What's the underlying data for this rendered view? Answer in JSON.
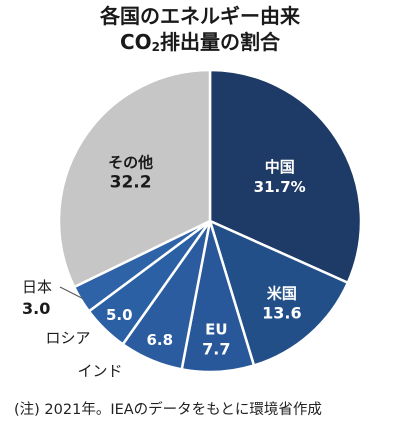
{
  "title_line1": "各国のエネルギー由来",
  "title_line2_pre": "CO",
  "title_line2_sub": "2",
  "title_line2_post": "排出量の割合",
  "note": "(注) 2021年。IEAのデータをもとに環境省作成",
  "chart_data": {
    "type": "pie",
    "start": "12 o'clock",
    "direction": "clockwise",
    "unit": "%",
    "slices": [
      {
        "name": "中国",
        "value": 31.7,
        "label": "31.7%",
        "color": "#1e3a66"
      },
      {
        "name": "米国",
        "value": 13.6,
        "label": "13.6",
        "color": "#234f88"
      },
      {
        "name": "EU",
        "value": 7.7,
        "label": "7.7",
        "color": "#28589a"
      },
      {
        "name": "インド",
        "value": 6.8,
        "label": "6.8",
        "color": "#2a5c9f"
      },
      {
        "name": "ロシア",
        "value": 5.0,
        "label": "5.0",
        "color": "#2c60a4"
      },
      {
        "name": "日本",
        "value": 3.0,
        "label": "3.0",
        "color": "#2e63a8"
      },
      {
        "name": "その他",
        "value": 32.2,
        "label": "32.2",
        "color": "#c6c6c6"
      }
    ]
  }
}
